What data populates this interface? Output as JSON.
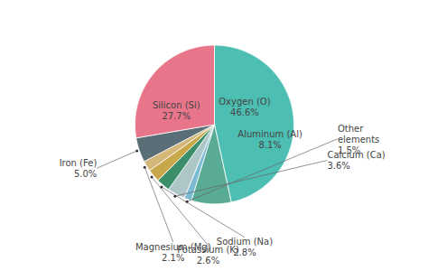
{
  "chart_data": {
    "type": "pie",
    "categories": [
      "Oxygen (O)",
      "Aluminum (Al)",
      "Other elements",
      "Calcium (Ca)",
      "Sodium (Na)",
      "Potassium (K)",
      "Magnesium (Mg)",
      "Iron (Fe)",
      "Silicon (Si)"
    ],
    "values": [
      46.6,
      8.1,
      1.5,
      3.6,
      2.8,
      2.6,
      2.1,
      5.0,
      27.7
    ],
    "value_labels": [
      "46.6%",
      "8.1%",
      "1.5%",
      "3.6%",
      "2.8%",
      "2.6%",
      "2.1%",
      "5.0%",
      "27.7%"
    ],
    "colors": [
      "#4dbfb2",
      "#5aab95",
      "#7bbcd4",
      "#aec6c8",
      "#3a8f6a",
      "#c8a84b",
      "#d4b87a",
      "#5a6e77",
      "#e8758a"
    ],
    "data_labels": true
  }
}
